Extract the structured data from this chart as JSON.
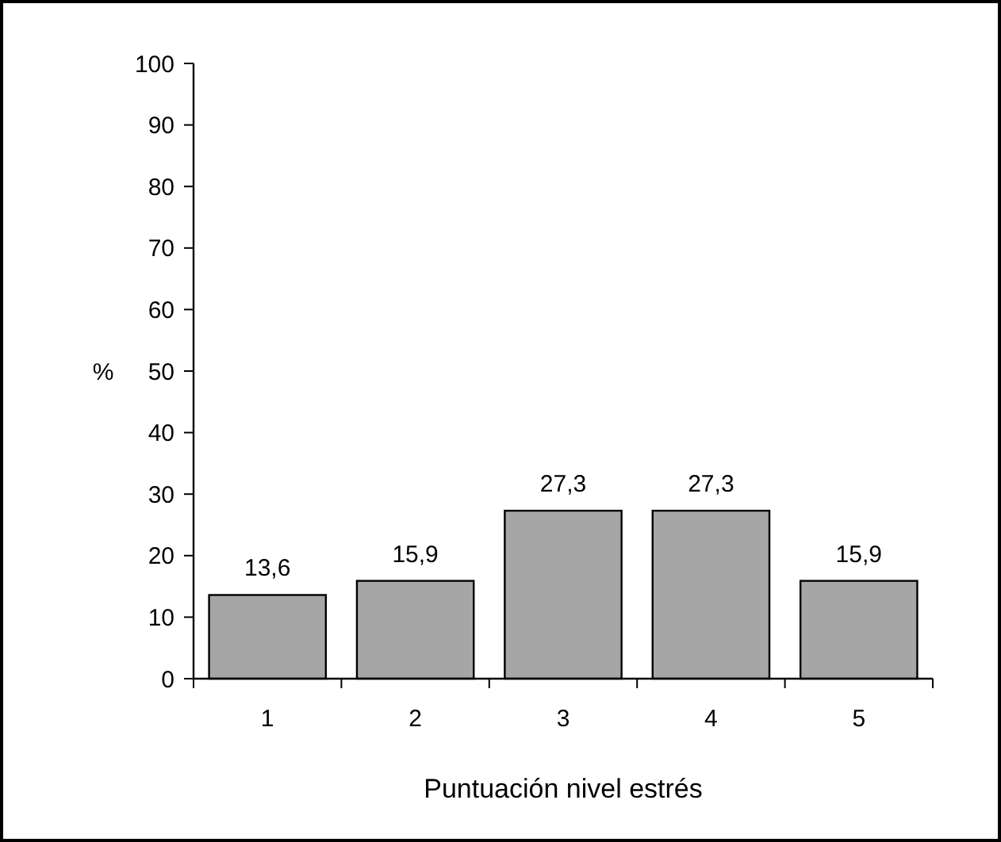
{
  "chart_data": {
    "type": "bar",
    "xlabel": "Puntuación nivel estrés",
    "ylabel": "%",
    "categories": [
      "1",
      "2",
      "3",
      "4",
      "5"
    ],
    "values": [
      13.6,
      15.9,
      27.3,
      27.3,
      15.9
    ],
    "value_labels": [
      "13,6",
      "15,9",
      "27,3",
      "27,3",
      "15,9"
    ],
    "color": "#a6a6a6",
    "ylim": [
      0,
      100
    ],
    "yticks": [
      0,
      10,
      20,
      30,
      40,
      50,
      60,
      70,
      80,
      90,
      100
    ],
    "grid": false
  }
}
